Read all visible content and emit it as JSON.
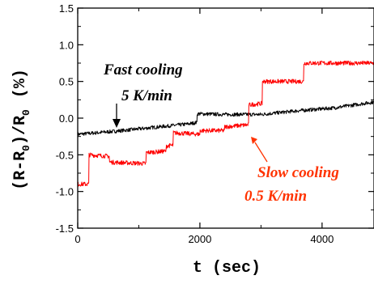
{
  "chart_data": {
    "type": "line",
    "xlabel": "t (sec)",
    "ylabel_main": "(R-R",
    "ylabel_sub0": "0",
    "ylabel_mid": ")/R",
    "ylabel_sub1": "0",
    "ylabel_unit": "(%)",
    "xlim": [
      0,
      4850
    ],
    "ylim": [
      -1.5,
      1.5
    ],
    "x_ticks": [
      "0",
      "2000",
      "4000"
    ],
    "y_ticks": [
      "-1.5",
      "-1.0",
      "-0.5",
      "0.0",
      "0.5",
      "1.0",
      "1.5"
    ],
    "grid": false,
    "series": [
      {
        "name": "Fast cooling",
        "color": "#000000",
        "x": [
          0,
          600,
          1200,
          1800,
          1950,
          1950,
          2400,
          3000,
          3600,
          4200,
          4850
        ],
        "y": [
          -0.22,
          -0.18,
          -0.13,
          -0.08,
          -0.06,
          0.06,
          0.05,
          0.05,
          0.1,
          0.14,
          0.22
        ]
      },
      {
        "name": "Slow cooling",
        "color": "#ff0000",
        "x": [
          0,
          180,
          180,
          520,
          520,
          1120,
          1120,
          1450,
          1450,
          1560,
          1560,
          2000,
          2000,
          2400,
          2400,
          2800,
          2800,
          2800,
          3020,
          3020,
          3700,
          3700,
          4850
        ],
        "y": [
          -0.9,
          -0.9,
          -0.5,
          -0.52,
          -0.6,
          -0.62,
          -0.47,
          -0.45,
          -0.38,
          -0.37,
          -0.2,
          -0.22,
          -0.17,
          -0.17,
          -0.12,
          -0.09,
          -0.05,
          0.18,
          0.2,
          0.5,
          0.5,
          0.75,
          0.75
        ]
      }
    ],
    "annotations": {
      "fast_line1": "Fast cooling",
      "fast_line2": "5 K/min",
      "slow_line1": "Slow cooling",
      "slow_line2": "0.5 K/min"
    }
  }
}
